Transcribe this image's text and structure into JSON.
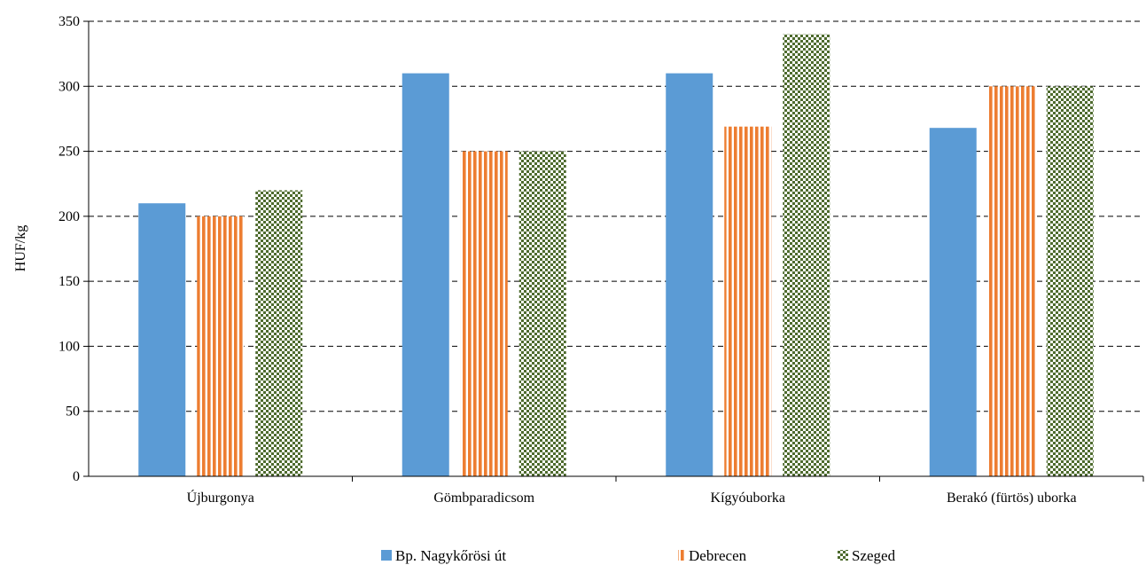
{
  "chart_data": {
    "type": "bar",
    "title": "",
    "xlabel": "",
    "ylabel": "HUF/kg",
    "ylim": [
      0,
      350
    ],
    "yticks": [
      0,
      50,
      100,
      150,
      200,
      250,
      300,
      350
    ],
    "grid": true,
    "legend_position": "bottom",
    "categories": [
      "Újburgonya",
      "Gömbparadicsom",
      "Kígyóuborka",
      "Berakó (fürtös) uborka"
    ],
    "series": [
      {
        "name": "Bp. Nagykőrösi út",
        "values": [
          210,
          310,
          310,
          268
        ],
        "color": "#5b9bd5",
        "pattern": "solid"
      },
      {
        "name": "Debrecen",
        "values": [
          200,
          250,
          269,
          300
        ],
        "color": "#ed7d31",
        "pattern": "vertical-stripes"
      },
      {
        "name": "Szeged",
        "values": [
          220,
          250,
          340,
          300
        ],
        "color": "#4e6b2e",
        "pattern": "checker"
      }
    ]
  }
}
